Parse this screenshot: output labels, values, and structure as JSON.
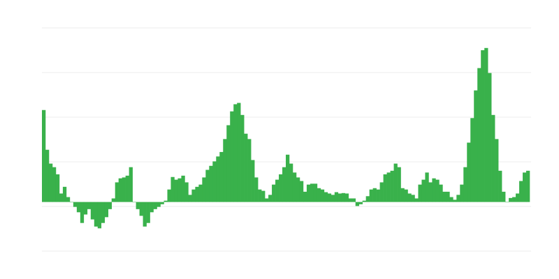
{
  "chart_data": {
    "type": "bar",
    "title": "",
    "xlabel": "",
    "ylabel": "",
    "grid": true,
    "legend": "none",
    "gridlines": [
      3.9,
      2.9,
      1.9,
      0.9,
      -0.1,
      -1.1
    ],
    "ylim": [
      -1.1,
      3.9
    ],
    "bar_color": "#39b14b",
    "grid_color": "#eeeeee",
    "values": [
      2.06,
      1.17,
      0.86,
      0.78,
      0.62,
      0.19,
      0.34,
      0.11,
      0.0,
      -0.11,
      -0.23,
      -0.47,
      -0.28,
      -0.16,
      -0.39,
      -0.55,
      -0.59,
      -0.47,
      -0.34,
      -0.16,
      0.08,
      0.44,
      0.53,
      0.55,
      0.59,
      0.78,
      0.0,
      -0.16,
      -0.31,
      -0.55,
      -0.47,
      -0.23,
      -0.16,
      -0.11,
      -0.05,
      0.03,
      0.28,
      0.56,
      0.5,
      0.53,
      0.59,
      0.44,
      0.16,
      0.28,
      0.34,
      0.39,
      0.55,
      0.72,
      0.81,
      0.91,
      1.02,
      1.12,
      1.41,
      1.72,
      2.03,
      2.19,
      2.22,
      1.95,
      1.53,
      1.41,
      0.94,
      0.55,
      0.28,
      0.25,
      0.08,
      0.16,
      0.39,
      0.5,
      0.62,
      0.78,
      1.06,
      0.86,
      0.66,
      0.55,
      0.47,
      0.23,
      0.39,
      0.41,
      0.41,
      0.31,
      0.28,
      0.22,
      0.19,
      0.16,
      0.22,
      0.19,
      0.2,
      0.19,
      0.08,
      0.08,
      -0.09,
      -0.05,
      0.03,
      0.13,
      0.28,
      0.31,
      0.28,
      0.44,
      0.62,
      0.66,
      0.7,
      0.86,
      0.78,
      0.31,
      0.28,
      0.19,
      0.16,
      0.08,
      0.39,
      0.5,
      0.66,
      0.44,
      0.53,
      0.5,
      0.39,
      0.23,
      0.23,
      0.11,
      0.05,
      0.16,
      0.39,
      0.78,
      1.33,
      1.88,
      2.5,
      3.0,
      3.4,
      3.45,
      2.89,
      1.95,
      1.41,
      0.7,
      0.23,
      0.0,
      0.09,
      0.11,
      0.19,
      0.47,
      0.66,
      0.7
    ]
  }
}
